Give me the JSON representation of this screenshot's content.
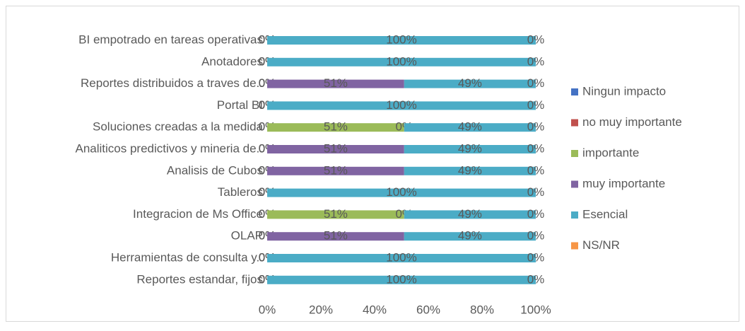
{
  "chart_data": {
    "type": "stacked_barh",
    "categories": [
      "BI empotrado en tareas operativas",
      "Anotadores",
      "Reportes distribuidos a traves de..",
      "Portal BI",
      "Soluciones creadas a la medida",
      "Analiticos predictivos y mineria de..",
      "Analisis de Cubos",
      "Tableros",
      "Integracion de Ms Office",
      "OLAP",
      "Herramientas de consulta y..",
      "Reportes estandar, fijos"
    ],
    "series": [
      {
        "name": "Ningun impacto",
        "color": "#4472c4",
        "values": [
          0,
          0,
          0,
          0,
          0,
          0,
          0,
          0,
          0,
          0,
          0,
          0
        ],
        "value_labels": [
          "0%",
          "0%",
          "0%",
          "0%",
          "0%",
          "0%",
          "0%",
          "0%",
          "0%",
          "0%",
          "0%",
          "0%"
        ]
      },
      {
        "name": "no muy importante",
        "color": "#c0504d",
        "values": [
          0,
          0,
          0,
          0,
          0,
          0,
          0,
          0,
          0,
          0,
          0,
          0
        ],
        "value_labels": [
          "0%",
          "0%",
          "0%",
          "0%",
          "0%",
          "0%",
          "0%",
          "0%",
          "0%",
          "0%",
          "0%",
          "0%"
        ]
      },
      {
        "name": "importante",
        "color": "#9bbb59",
        "values": [
          0,
          0,
          0,
          0,
          51,
          0,
          0,
          0,
          51,
          0,
          0,
          0
        ],
        "value_labels": [
          "0%",
          "0%",
          "0%",
          "0%",
          "51%",
          "0%",
          "0%",
          "0%",
          "51%",
          "0%",
          "0%",
          "0%"
        ]
      },
      {
        "name": "muy importante",
        "color": "#8064a2",
        "values": [
          0,
          0,
          51,
          0,
          0,
          51,
          51,
          0,
          0,
          51,
          0,
          0
        ],
        "value_labels": [
          "0%",
          "0%",
          "51%",
          "0%",
          "0%",
          "51%",
          "51%",
          "0%",
          "0%",
          "51%",
          "0%",
          "0%"
        ]
      },
      {
        "name": "Esencial",
        "color": "#4bacc6",
        "values": [
          100,
          100,
          49,
          100,
          49,
          49,
          49,
          100,
          49,
          49,
          100,
          100
        ],
        "value_labels": [
          "100%",
          "100%",
          "49%",
          "100%",
          "49%",
          "49%",
          "49%",
          "100%",
          "49%",
          "49%",
          "100%",
          "100%"
        ]
      },
      {
        "name": "NS/NR",
        "color": "#f79646",
        "values": [
          0,
          0,
          0,
          0,
          0,
          0,
          0,
          0,
          0,
          0,
          0,
          0
        ],
        "value_labels": [
          "0%",
          "0%",
          "0%",
          "0%",
          "0%",
          "0%",
          "0%",
          "0%",
          "0%",
          "0%",
          "0%",
          "0%"
        ]
      }
    ],
    "xlim": [
      0,
      100
    ],
    "xticks": [
      {
        "value": 0,
        "label": "0%"
      },
      {
        "value": 20,
        "label": "20%"
      },
      {
        "value": 40,
        "label": "40%"
      },
      {
        "value": 60,
        "label": "60%"
      },
      {
        "value": 80,
        "label": "80%"
      },
      {
        "value": 100,
        "label": "100%"
      }
    ],
    "legend": "right"
  }
}
